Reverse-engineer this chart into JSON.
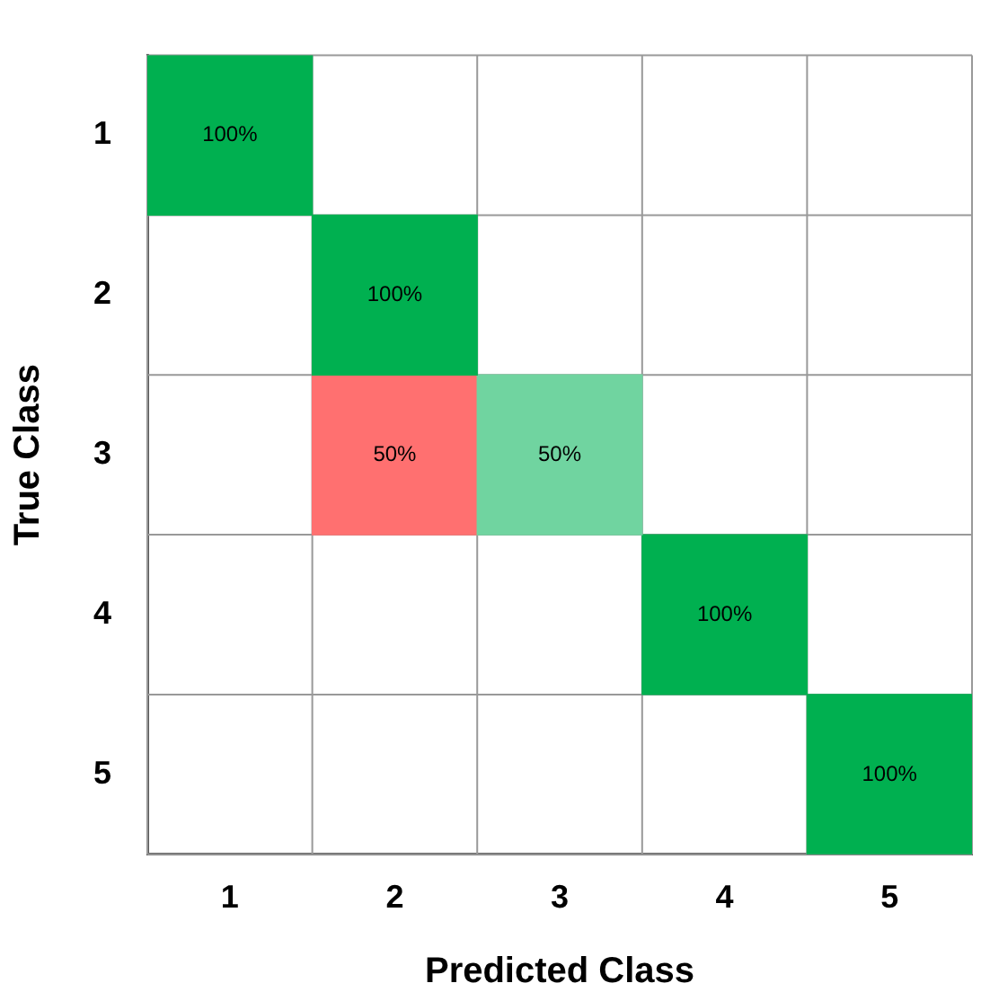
{
  "chart_data": {
    "type": "heatmap",
    "xlabel": "Predicted Class",
    "ylabel": "True Class",
    "categories": [
      "1",
      "2",
      "3",
      "4",
      "5"
    ],
    "y_categories": [
      "1",
      "2",
      "3",
      "4",
      "5"
    ],
    "cells": [
      [
        100,
        null,
        null,
        null,
        null
      ],
      [
        null,
        100,
        null,
        null,
        null
      ],
      [
        null,
        50,
        50,
        null,
        null
      ],
      [
        null,
        null,
        null,
        100,
        null
      ],
      [
        null,
        null,
        null,
        null,
        100
      ]
    ],
    "cell_labels": [
      [
        "100%",
        null,
        null,
        null,
        null
      ],
      [
        null,
        "100%",
        null,
        null,
        null
      ],
      [
        null,
        "50%",
        "50%",
        null,
        null
      ],
      [
        null,
        null,
        null,
        "100%",
        null
      ],
      [
        null,
        null,
        null,
        null,
        "100%"
      ]
    ],
    "colors": [
      [
        "#00b050",
        null,
        null,
        null,
        null
      ],
      [
        null,
        "#00b050",
        null,
        null,
        null
      ],
      [
        null,
        "#ff4040",
        "#40c680",
        null,
        null
      ],
      [
        null,
        null,
        null,
        "#00b050",
        null
      ],
      [
        null,
        null,
        null,
        null,
        "#00b050"
      ]
    ],
    "grid": true
  }
}
